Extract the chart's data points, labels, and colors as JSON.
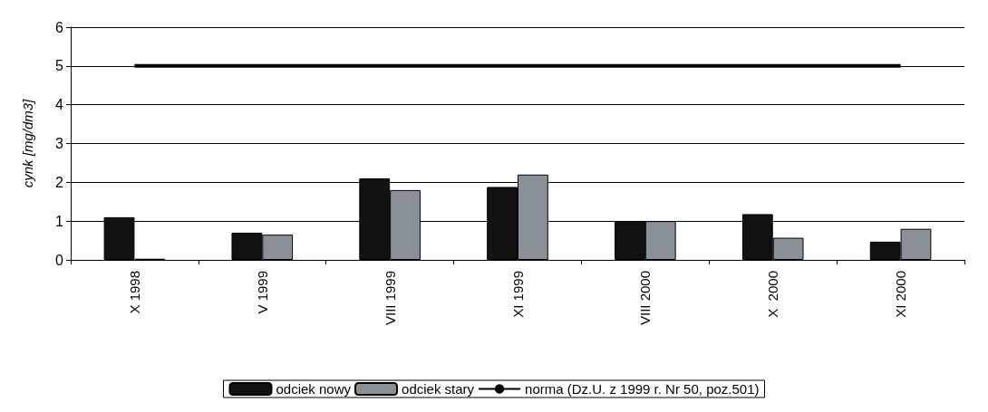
{
  "chart_data": {
    "type": "bar",
    "ylabel": "cynk [mg/dm3]",
    "categories": [
      "X 1998",
      "V 1999",
      "VIII 1999",
      "XI 1999",
      "VIII 2000",
      "X  2000",
      "XI 2000"
    ],
    "series": [
      {
        "name": "odciek nowy",
        "color": "#111111",
        "values": [
          1.1,
          0.7,
          2.1,
          1.88,
          1.0,
          1.18,
          0.47
        ]
      },
      {
        "name": "odciek stary",
        "color": "#8a9098",
        "values": [
          0.03,
          0.65,
          1.8,
          2.2,
          1.0,
          0.57,
          0.8
        ]
      },
      {
        "name": "norma (Dz.U. z 1999 r. Nr 50, poz.501)",
        "type": "line",
        "color": "#000000",
        "values": [
          5,
          5,
          5,
          5,
          5,
          5,
          5
        ]
      }
    ],
    "ylim": [
      0,
      6
    ],
    "yticks": [
      0,
      1,
      2,
      3,
      4,
      5,
      6
    ],
    "grid": "y",
    "legend": "bottom",
    "marker": "none"
  }
}
